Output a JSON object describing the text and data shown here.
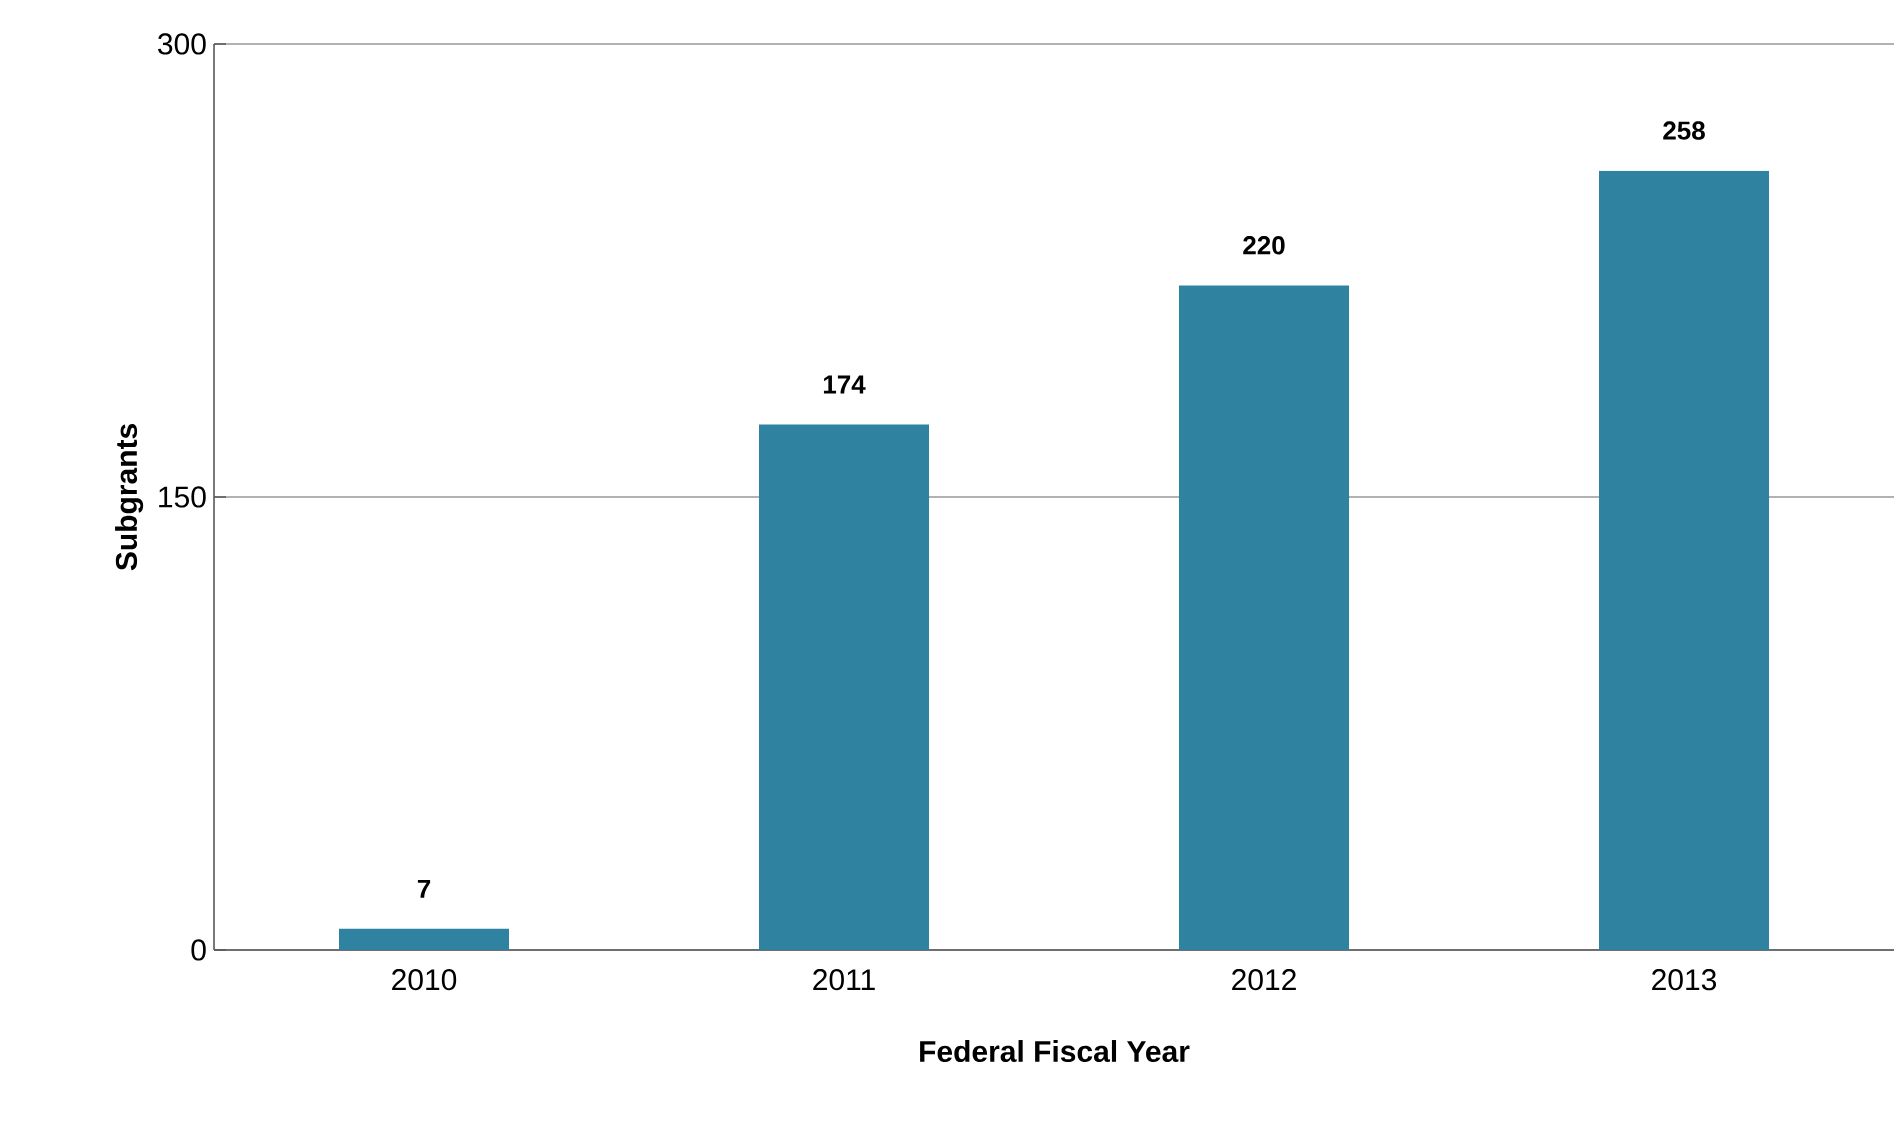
{
  "chart_data": {
    "type": "bar",
    "xlabel": "Federal Fiscal Year",
    "ylabel": "Subgrants",
    "categories": [
      "2010",
      "2011",
      "2012",
      "2013"
    ],
    "values": [
      7,
      174,
      220,
      258
    ],
    "color": "#2f83a0",
    "ylim": [
      0,
      300
    ],
    "yticks": [
      0,
      150,
      300
    ],
    "grid": "y",
    "data_labels": true
  }
}
